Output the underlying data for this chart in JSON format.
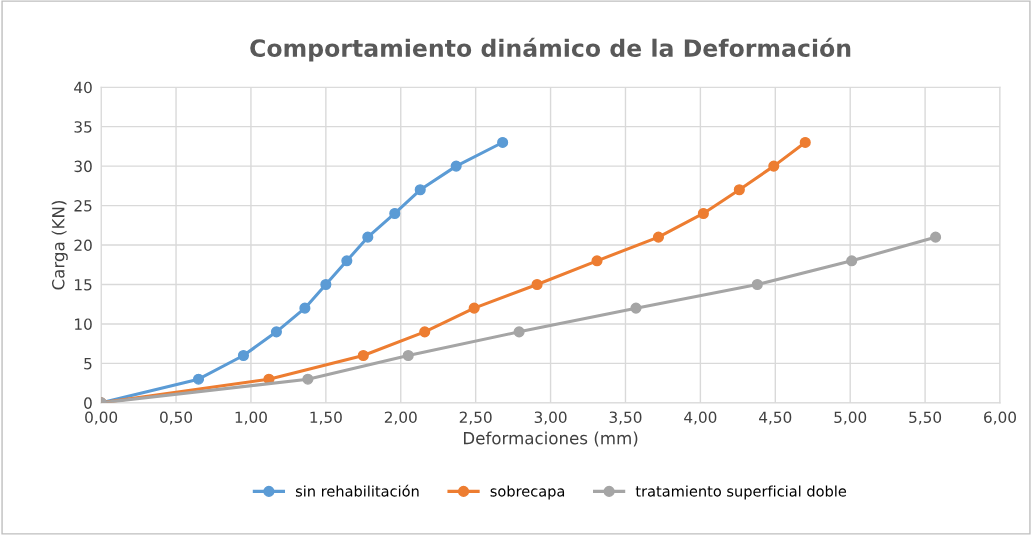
{
  "chart_data": {
    "type": "line",
    "title": "Comportamiento dinámico de la Deformación",
    "xlabel": "Deformaciones (mm)",
    "ylabel": "Carga (KN)",
    "xlim": [
      0,
      6
    ],
    "xticks": [
      {
        "value": 0,
        "label": "0,00"
      },
      {
        "value": 0.5,
        "label": "0,50"
      },
      {
        "value": 1,
        "label": "1,00"
      },
      {
        "value": 1.5,
        "label": "1,50"
      },
      {
        "value": 2,
        "label": "2,00"
      },
      {
        "value": 2.5,
        "label": "2,50"
      },
      {
        "value": 3,
        "label": "3,00"
      },
      {
        "value": 3.5,
        "label": "3,50"
      },
      {
        "value": 4,
        "label": "4,00"
      },
      {
        "value": 4.5,
        "label": "4,50"
      },
      {
        "value": 5,
        "label": "5,00"
      },
      {
        "value": 5.5,
        "label": "5,50"
      },
      {
        "value": 6,
        "label": "6,00"
      }
    ],
    "ylim": [
      0,
      40
    ],
    "yticks": [
      0,
      5,
      10,
      15,
      20,
      25,
      30,
      35,
      40
    ],
    "grid": true,
    "legend": "bottom",
    "marker": "circle",
    "line_style": "solid",
    "series": [
      {
        "name": "sin rehabilitación",
        "color": "#5b9bd5",
        "x": [
          0,
          0.65,
          0.95,
          1.17,
          1.36,
          1.5,
          1.64,
          1.78,
          1.96,
          2.13,
          2.37,
          2.68
        ],
        "values": [
          0,
          3,
          6,
          9,
          12,
          15,
          18,
          21,
          24,
          27,
          30,
          33
        ]
      },
      {
        "name": "sobrecapa",
        "color": "#ed7d31",
        "x": [
          0,
          1.12,
          1.75,
          2.16,
          2.49,
          2.91,
          3.31,
          3.72,
          4.02,
          4.26,
          4.49,
          4.7
        ],
        "values": [
          0,
          3,
          6,
          9,
          12,
          15,
          18,
          21,
          24,
          27,
          30,
          33
        ]
      },
      {
        "name": "tratamiento superficial doble",
        "color": "#a5a5a5",
        "x": [
          0,
          1.38,
          2.05,
          2.79,
          3.57,
          4.38,
          5.01,
          5.57
        ],
        "values": [
          0,
          3,
          6,
          9,
          12,
          15,
          18,
          21
        ]
      }
    ]
  }
}
